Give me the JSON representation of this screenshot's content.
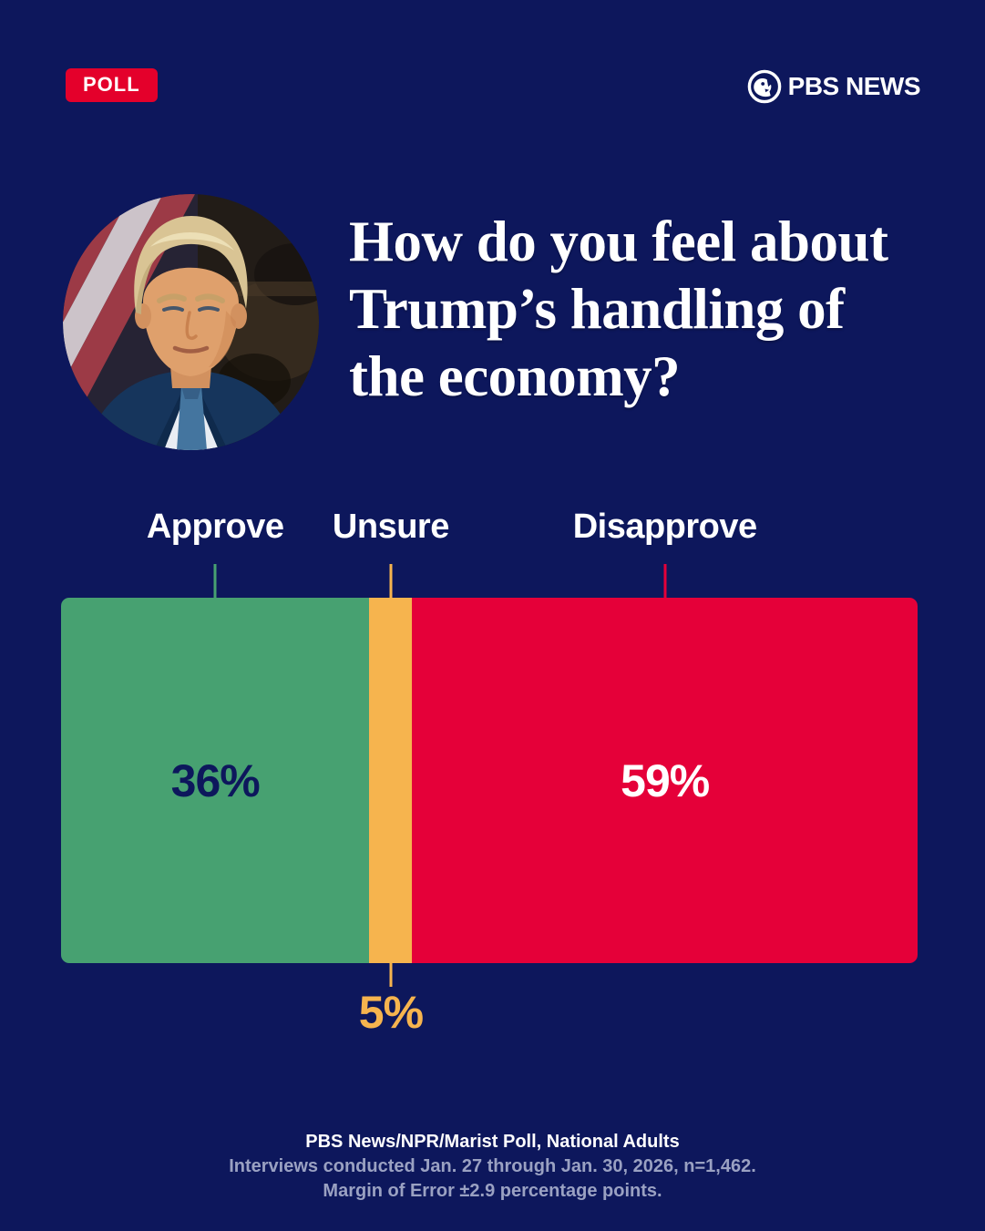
{
  "theme": {
    "bg": "#0d175c",
    "badge": "#e4002b",
    "note": "#9aa1c2",
    "white": "#ffffff"
  },
  "header": {
    "badge": "POLL",
    "brand": "PBS NEWS"
  },
  "question_lines": [
    "How do you feel about",
    "Trump’s handling of",
    "the economy?"
  ],
  "chart_data": {
    "type": "bar",
    "orientation": "horizontal_stacked",
    "title": "How do you feel about Trump’s handling of the economy?",
    "categories": [
      "Approve",
      "Unsure",
      "Disapprove"
    ],
    "values": [
      36,
      5,
      59
    ],
    "unit": "%",
    "xlim": [
      0,
      100
    ],
    "colors": [
      "#47a171",
      "#f6b44e",
      "#e50039"
    ],
    "value_labels": [
      "36%",
      "5%",
      "59%"
    ],
    "value_label_colors": [
      "#0d175c",
      "#f6b44e",
      "#ffffff"
    ],
    "value_label_positions": [
      "inside",
      "below",
      "inside"
    ],
    "legend": "none",
    "grid": false
  },
  "footer": {
    "line1": "PBS News/NPR/Marist Poll, National Adults",
    "line2": "Interviews conducted Jan. 27 through Jan. 30, 2026, n=1,462.",
    "line3": "Margin of Error ±2.9 percentage points."
  }
}
